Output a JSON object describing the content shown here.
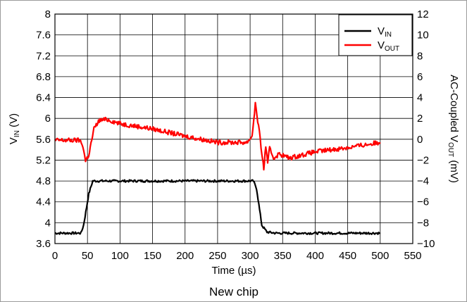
{
  "caption": "New chip",
  "chart_data": {
    "type": "line",
    "xlabel": "Time (µs)",
    "xlim": [
      0,
      550
    ],
    "x_ticks": [
      0,
      50,
      100,
      150,
      200,
      250,
      300,
      350,
      400,
      450,
      500,
      550
    ],
    "ylabel_left": {
      "main": "V",
      "sub": "IN",
      "suffix": " (V)"
    },
    "ylim_left": [
      3.6,
      8
    ],
    "y_ticks_left": [
      "3.6",
      "4",
      "4.4",
      "4.8",
      "5.2",
      "5.6",
      "6",
      "6.4",
      "6.8",
      "7.2",
      "7.6",
      "8"
    ],
    "ylabel_right": {
      "main": "AC-Coupled V",
      "sub": "OUT",
      "suffix": " (mV)"
    },
    "ylim_right": [
      -10,
      12
    ],
    "y_ticks_right": [
      "−10",
      "−8",
      "−6",
      "−4",
      "−2",
      "0",
      "2",
      "4",
      "6",
      "8",
      "10",
      "12"
    ],
    "grid": true,
    "legend_position": "top-right",
    "series": [
      {
        "name": {
          "main": "V",
          "sub": "IN"
        },
        "axis": "left",
        "color": "#000000",
        "x": [
          0,
          40,
          44,
          52,
          58,
          100,
          200,
          305,
          310,
          318,
          326,
          340,
          400,
          500
        ],
        "y": [
          3.8,
          3.8,
          3.95,
          4.55,
          4.8,
          4.8,
          4.8,
          4.8,
          4.65,
          3.95,
          3.82,
          3.8,
          3.8,
          3.8
        ]
      },
      {
        "name": {
          "main": "V",
          "sub": "OUT"
        },
        "axis": "right",
        "color": "#ff0000",
        "x": [
          0,
          38,
          43,
          47,
          52,
          60,
          68,
          80,
          100,
          150,
          200,
          250,
          295,
          303,
          308,
          313,
          318,
          321,
          324,
          327,
          330,
          336,
          345,
          360,
          400,
          450,
          500
        ],
        "y": [
          -0.1,
          -0.1,
          -0.6,
          -2.1,
          -1.5,
          1.0,
          1.8,
          1.9,
          1.5,
          1.0,
          0.3,
          -0.3,
          -0.3,
          0.3,
          3.4,
          1.2,
          -1.3,
          -2.9,
          -0.6,
          -2.4,
          -0.8,
          -1.8,
          -1.4,
          -1.8,
          -1.2,
          -0.8,
          -0.3
        ]
      }
    ]
  }
}
